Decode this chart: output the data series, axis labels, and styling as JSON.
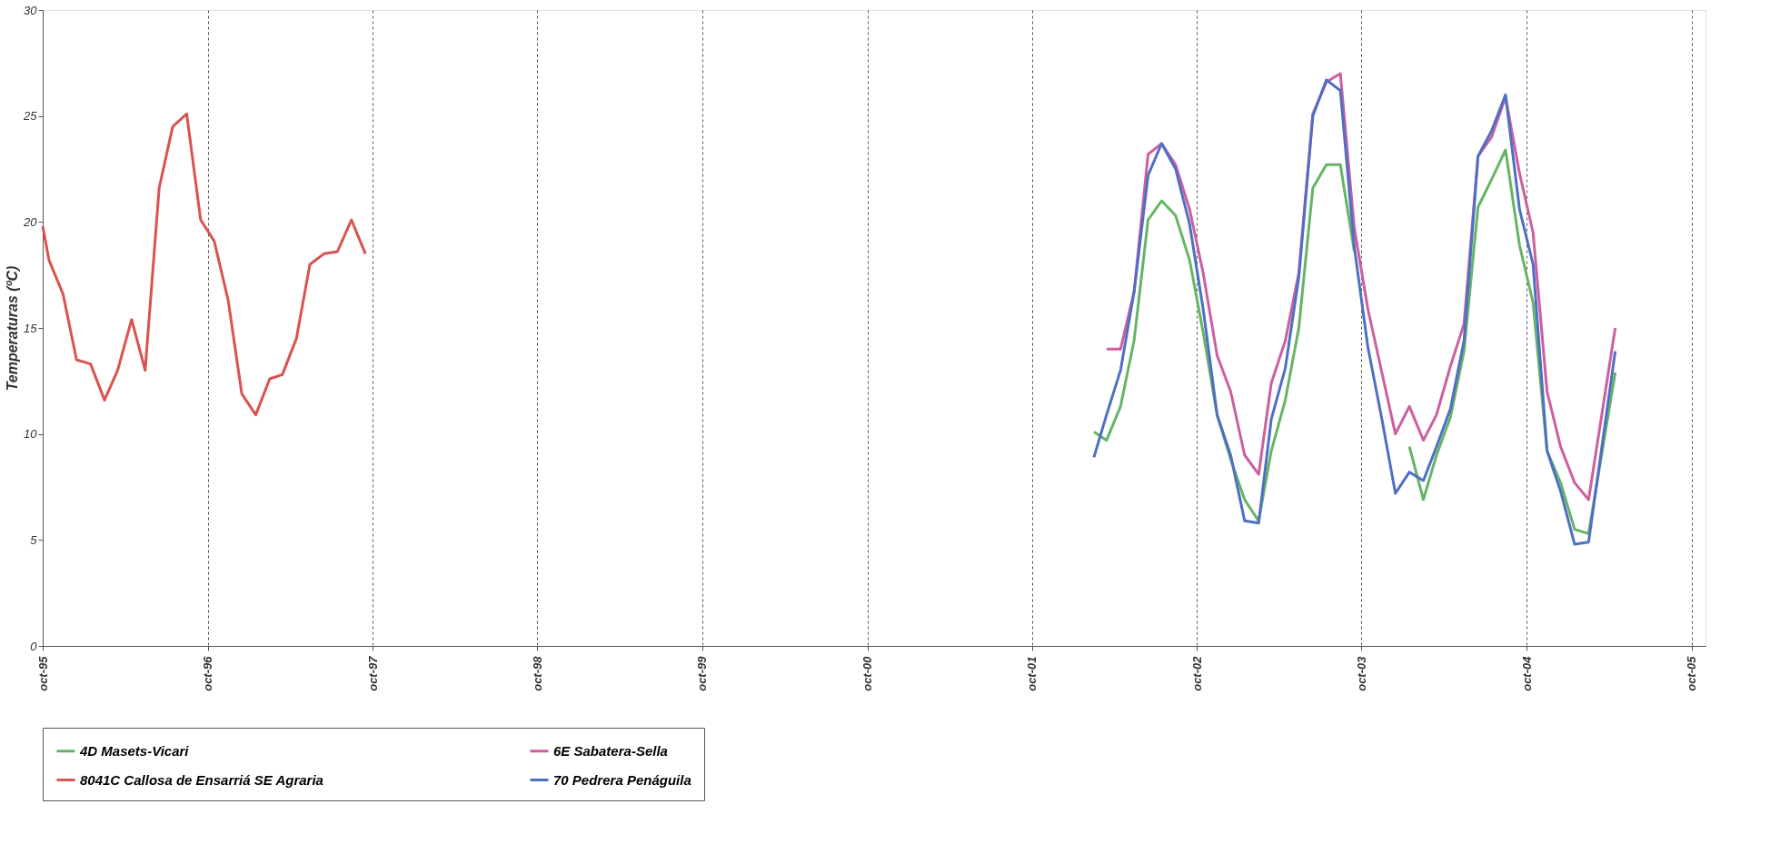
{
  "chart_data": {
    "type": "line",
    "ylabel": "Temperaturas (ºC)",
    "xlim": [
      "1995-10-01",
      "2005-11-01"
    ],
    "xticks": [
      {
        "value": "1995-10-01",
        "label": "oct-95"
      },
      {
        "value": "1996-10-01",
        "label": "oct-96"
      },
      {
        "value": "1997-10-01",
        "label": "oct-97"
      },
      {
        "value": "1998-10-01",
        "label": "oct-98"
      },
      {
        "value": "1999-10-01",
        "label": "oct-99"
      },
      {
        "value": "2000-10-01",
        "label": "oct-00"
      },
      {
        "value": "2001-10-01",
        "label": "oct-01"
      },
      {
        "value": "2002-10-01",
        "label": "oct-02"
      },
      {
        "value": "2003-10-01",
        "label": "oct-03"
      },
      {
        "value": "2004-10-01",
        "label": "oct-04"
      },
      {
        "value": "2005-10-01",
        "label": "oct-05"
      }
    ],
    "ylim": [
      0,
      30
    ],
    "yticks": [
      0,
      5,
      10,
      15,
      20,
      25,
      30
    ],
    "grid": "x",
    "legend": "bottom",
    "marker": "none",
    "line_style": "solid",
    "series": [
      {
        "name": "4D Masets-Vicari",
        "color": "#66b466",
        "x": [
          "2002-02-15",
          "2002-03-15",
          "2002-04-15",
          "2002-05-15",
          "2002-06-15",
          "2002-07-15",
          "2002-08-15",
          "2002-09-15",
          "2002-10-15",
          "2002-11-15",
          "2002-12-15",
          "2003-01-15",
          "2003-02-15",
          "2003-03-15",
          "2003-04-15",
          "2003-05-15",
          "2003-06-15",
          "2003-07-15",
          "2003-08-15",
          "2003-09-15",
          "2003-10-15",
          "2004-01-15",
          "2004-02-15",
          "2004-03-15",
          "2004-04-15",
          "2004-05-15",
          "2004-06-15",
          "2004-07-15",
          "2004-08-15",
          "2004-09-15",
          "2004-10-15",
          "2004-11-15",
          "2004-12-15",
          "2005-01-15",
          "2005-02-15",
          "2005-04-15"
        ],
        "values": [
          10.1,
          9.7,
          11.3,
          14.4,
          20.1,
          21.0,
          20.3,
          18.2,
          14.8,
          10.9,
          8.8,
          6.9,
          5.9,
          9.2,
          11.6,
          15.0,
          21.6,
          22.7,
          22.7,
          18.6,
          null,
          9.4,
          6.9,
          9.0,
          10.8,
          13.9,
          20.7,
          22.0,
          23.4,
          18.9,
          16.2,
          9.2,
          7.7,
          5.5,
          5.3,
          12.9
        ]
      },
      {
        "name": "6E Sabatera-Sella",
        "color": "#cc5fa0",
        "x": [
          "2002-03-15",
          "2002-04-15",
          "2002-05-15",
          "2002-06-15",
          "2002-07-15",
          "2002-08-15",
          "2002-09-15",
          "2002-10-15",
          "2002-11-15",
          "2002-12-15",
          "2003-01-15",
          "2003-02-15",
          "2003-03-15",
          "2003-04-15",
          "2003-05-15",
          "2003-06-15",
          "2003-07-15",
          "2003-08-15",
          "2003-09-15",
          "2003-10-15",
          "2003-11-15",
          "2003-12-15",
          "2004-01-15",
          "2004-02-15",
          "2004-03-15",
          "2004-04-15",
          "2004-05-15",
          "2004-06-15",
          "2004-07-15",
          "2004-08-15",
          "2004-09-15",
          "2004-10-15",
          "2004-11-15",
          "2004-12-15",
          "2005-01-15",
          "2005-02-15",
          "2005-04-15"
        ],
        "values": [
          14.0,
          14.0,
          16.7,
          23.2,
          23.7,
          22.7,
          20.6,
          17.6,
          13.7,
          12.0,
          9.0,
          8.1,
          12.4,
          14.4,
          17.6,
          25.1,
          26.6,
          27.0,
          19.7,
          15.9,
          12.9,
          10.0,
          11.3,
          9.7,
          10.9,
          13.2,
          15.2,
          23.1,
          24.0,
          25.9,
          22.3,
          19.5,
          12.0,
          9.4,
          7.7,
          6.9,
          15.0
        ]
      },
      {
        "name": "8041C Callosa de Ensarriá SE Agraria",
        "color": "#d9534f",
        "x": [
          "1995-10-01",
          "1995-10-15",
          "1995-11-15",
          "1995-12-15",
          "1996-01-15",
          "1996-02-15",
          "1996-03-15",
          "1996-04-15",
          "1996-05-15",
          "1996-06-15",
          "1996-07-15",
          "1996-08-15",
          "1996-09-15",
          "1996-10-15",
          "1996-11-15",
          "1996-12-15",
          "1997-01-15",
          "1997-02-15",
          "1997-03-15",
          "1997-04-15",
          "1997-05-15",
          "1997-06-15",
          "1997-07-15",
          "1997-08-15",
          "1997-09-15"
        ],
        "values": [
          19.8,
          18.2,
          16.6,
          13.5,
          13.3,
          11.6,
          13.0,
          15.4,
          13.0,
          21.6,
          24.5,
          25.1,
          20.1,
          19.1,
          16.3,
          11.9,
          10.9,
          12.6,
          12.8,
          14.5,
          18.0,
          18.5,
          18.6,
          20.1,
          18.5
        ]
      },
      {
        "name": "70 Pedrera Penáguila",
        "color": "#4f6fc4",
        "x": [
          "2002-02-15",
          "2002-03-15",
          "2002-04-15",
          "2002-05-15",
          "2002-06-15",
          "2002-07-15",
          "2002-08-15",
          "2002-09-15",
          "2002-10-15",
          "2002-11-15",
          "2002-12-15",
          "2003-01-15",
          "2003-02-15",
          "2003-03-15",
          "2003-04-15",
          "2003-05-15",
          "2003-06-15",
          "2003-07-15",
          "2003-08-15",
          "2003-09-15",
          "2003-10-15",
          "2003-11-15",
          "2003-12-15",
          "2004-01-15",
          "2004-02-15",
          "2004-03-15",
          "2004-04-15",
          "2004-05-15",
          "2004-06-15",
          "2004-07-15",
          "2004-08-15",
          "2004-09-15",
          "2004-10-15",
          "2004-11-15",
          "2004-12-15",
          "2005-01-15",
          "2005-02-15",
          "2005-04-15"
        ],
        "values": [
          8.9,
          10.9,
          13.0,
          16.7,
          22.2,
          23.7,
          22.5,
          19.9,
          15.9,
          10.9,
          9.0,
          5.9,
          5.8,
          10.7,
          13.1,
          17.4,
          25.0,
          26.7,
          26.2,
          18.8,
          14.1,
          10.7,
          7.2,
          8.2,
          7.8,
          9.4,
          11.2,
          14.4,
          23.1,
          24.3,
          26.0,
          20.6,
          18.0,
          9.2,
          7.3,
          4.8,
          4.9,
          13.9
        ]
      }
    ]
  }
}
